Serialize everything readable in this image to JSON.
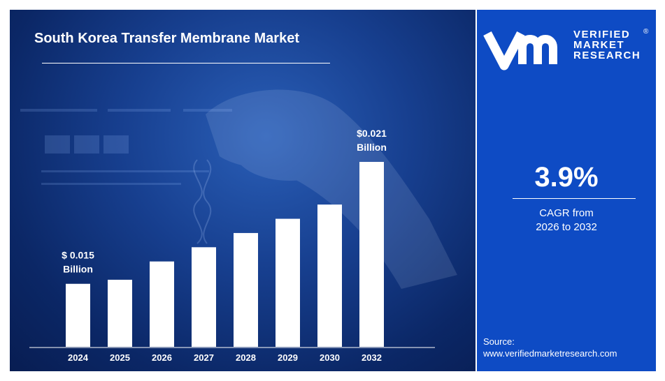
{
  "header": {
    "title": "South Korea Transfer Membrane Market"
  },
  "brand": {
    "line1": "VERIFIED",
    "line2": "MARKET",
    "line3": "RESEARCH",
    "registered": "®"
  },
  "cagr": {
    "value": "3.9%",
    "line1": "CAGR from",
    "line2": "2026 to 2032"
  },
  "source": {
    "label": "Source:",
    "url": "www.verifiedmarketresearch.com"
  },
  "colors": {
    "panel": "#0e4bc4",
    "bar": "#ffffff",
    "text": "#ffffff"
  },
  "chart_data": {
    "type": "bar",
    "title": "South Korea Transfer Membrane Market",
    "categories": [
      "2024",
      "2025",
      "2026",
      "2027",
      "2028",
      "2029",
      "2030",
      "2032"
    ],
    "values": [
      0.015,
      0.0152,
      0.0161,
      0.0168,
      0.0175,
      0.0182,
      0.0189,
      0.021
    ],
    "unit": "Billion USD",
    "ylim": [
      0.0119,
      0.0225
    ],
    "grid": false,
    "annotations": [
      {
        "category": "2024",
        "line1": "$ 0.015",
        "line2": "Billion"
      },
      {
        "category": "2032",
        "line1": "$0.021",
        "line2": "Billion"
      }
    ]
  }
}
